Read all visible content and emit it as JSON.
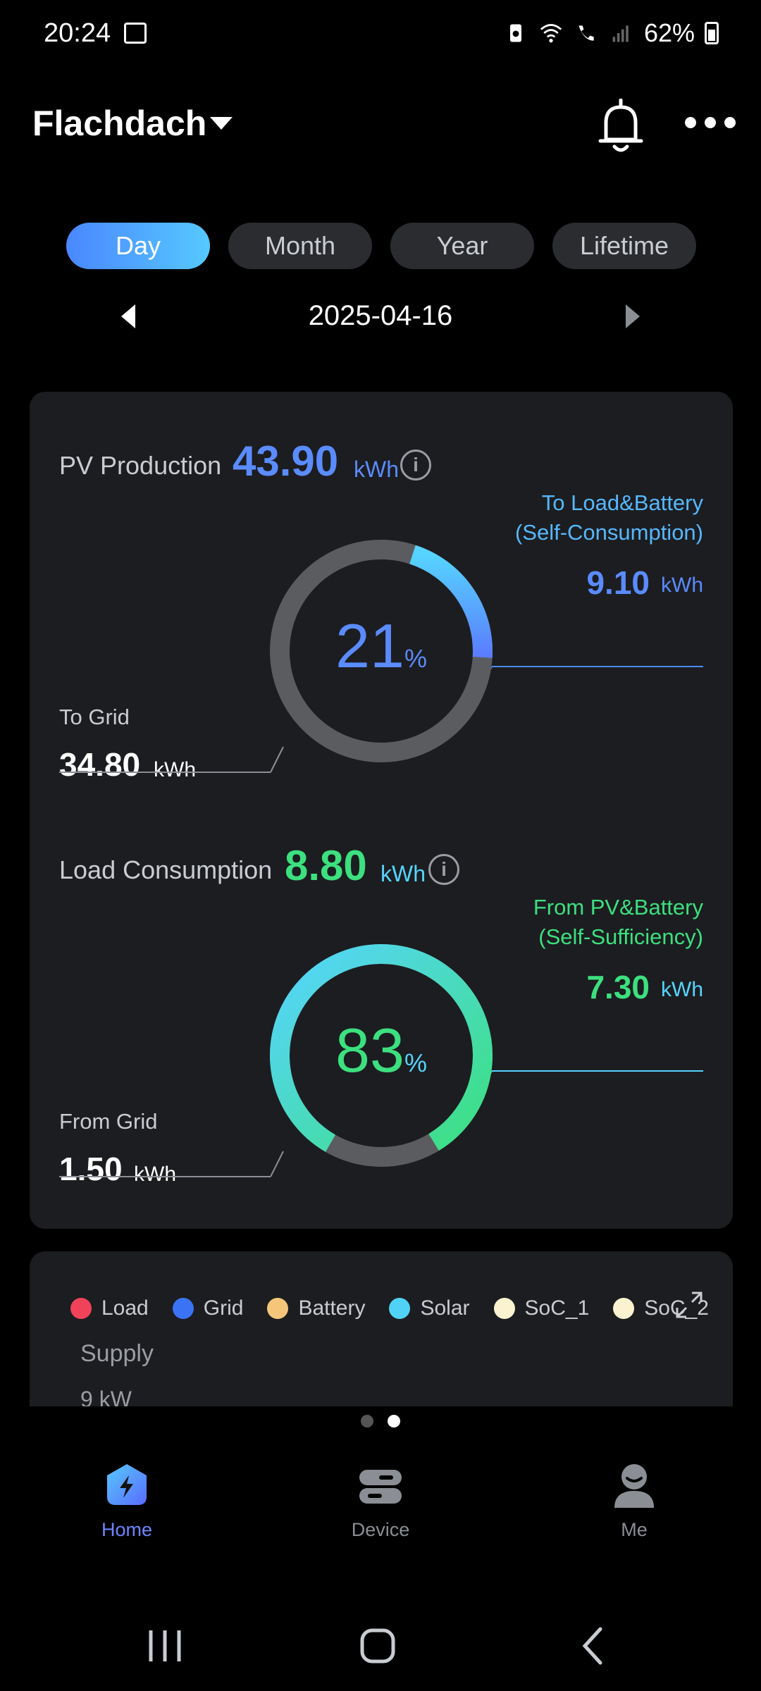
{
  "status_bar": {
    "time": "20:24",
    "battery_percent": "62%"
  },
  "header": {
    "site_name": "Flachdach"
  },
  "tabs": [
    {
      "label": "Day",
      "active": true
    },
    {
      "label": "Month",
      "active": false
    },
    {
      "label": "Year",
      "active": false
    },
    {
      "label": "Lifetime",
      "active": false
    }
  ],
  "date": "2025-04-16",
  "pv": {
    "label": "PV Production",
    "value": "43.90",
    "unit": "kWh",
    "self_label_1": "To Load&Battery",
    "self_label_2": "(Self-Consumption)",
    "self_value": "9.10",
    "self_unit": "kWh",
    "grid_label": "To Grid",
    "grid_value": "34.80",
    "grid_unit": "kWh",
    "percent": "21",
    "percent_sign": "%",
    "ratio": 0.21
  },
  "load": {
    "label": "Load Consumption",
    "value": "8.80",
    "unit": "kWh",
    "self_label_1": "From PV&Battery",
    "self_label_2": "(Self-Sufficiency)",
    "self_value": "7.30",
    "self_unit": "kWh",
    "grid_label": "From Grid",
    "grid_value": "1.50",
    "grid_unit": "kWh",
    "percent": "83",
    "percent_sign": "%",
    "ratio": 0.83
  },
  "legend": [
    {
      "label": "Load",
      "color": "#f0435a"
    },
    {
      "label": "Grid",
      "color": "#3b73f5"
    },
    {
      "label": "Battery",
      "color": "#f5c67a"
    },
    {
      "label": "Solar",
      "color": "#4fd2f5"
    },
    {
      "label": "SoC_1",
      "color": "#fbf3cf"
    },
    {
      "label": "SoC_2",
      "color": "#fbf3cf"
    }
  ],
  "chart": {
    "title": "Supply",
    "y_tick": "9 kW"
  },
  "bottom_nav": [
    {
      "label": "Home",
      "active": true
    },
    {
      "label": "Device",
      "active": false
    },
    {
      "label": "Me",
      "active": false
    }
  ],
  "colors": {
    "accent_blue": "#5a8bff",
    "accent_green": "#3ce07f",
    "cyan": "#56d4ff",
    "ring_bg": "#5b5c60"
  }
}
